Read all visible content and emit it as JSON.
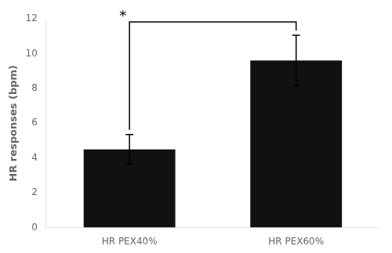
{
  "chart_data": {
    "type": "bar",
    "categories": [
      "HR PEX40%",
      "HR PEX60%"
    ],
    "values": [
      4.5,
      9.6
    ],
    "errors": [
      0.85,
      1.45
    ],
    "color": "#111111",
    "ylabel": "HR responses (bpm)",
    "ylim": [
      0,
      12
    ],
    "yticks": [
      0,
      2,
      4,
      6,
      8,
      10,
      12
    ],
    "grid": false,
    "annotations": [
      "*"
    ]
  }
}
